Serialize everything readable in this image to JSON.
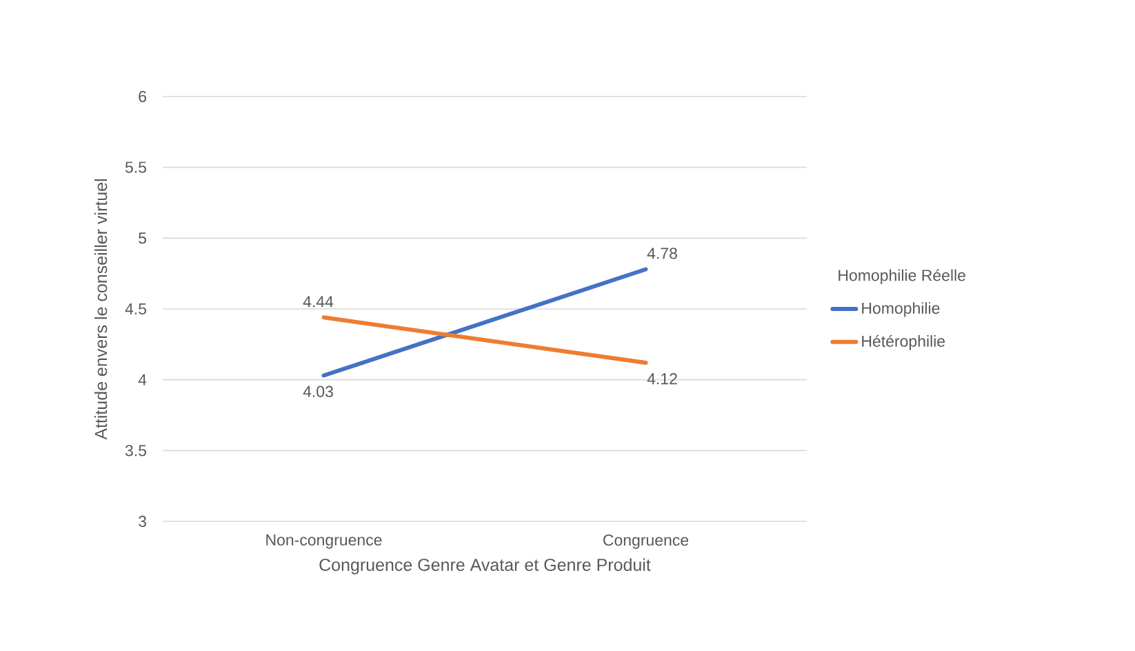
{
  "chart_data": {
    "type": "line",
    "xlabel": "Congruence Genre Avatar et Genre Produit",
    "ylabel": "Attitude envers le conseiller virtuel",
    "legend_title": "Homophilie Réelle",
    "categories": [
      "Non-congruence",
      "Congruence"
    ],
    "series": [
      {
        "name": "Homophilie",
        "color": "#4472c4",
        "values": [
          4.03,
          4.78
        ]
      },
      {
        "name": "Hétérophilie",
        "color": "#ed7d31",
        "values": [
          4.44,
          4.12
        ]
      }
    ],
    "ylim": [
      3,
      6
    ],
    "yticks": [
      3,
      3.5,
      4,
      4.5,
      5,
      5.5,
      6
    ],
    "grid": "y",
    "legend": "right",
    "data_labels": true,
    "marker": "none",
    "line_style": "solid"
  }
}
